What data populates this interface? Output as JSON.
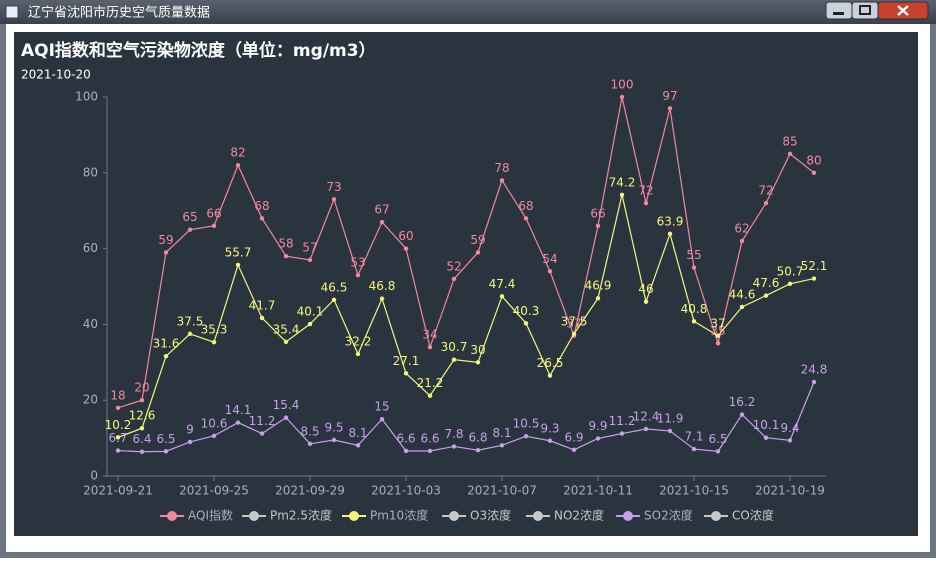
{
  "window_title": "辽宁省沈阳市历史空气质量数据",
  "chart_data": {
    "type": "line",
    "title": "AQI指数和空气污染物浓度（单位：mg/m3）",
    "subtitle": "2021-10-20",
    "categories": [
      "2021-09-21",
      null,
      null,
      null,
      "2021-09-25",
      null,
      null,
      null,
      "2021-09-29",
      null,
      null,
      null,
      "2021-10-03",
      null,
      null,
      null,
      "2021-10-07",
      null,
      null,
      null,
      "2021-10-11",
      null,
      null,
      null,
      "2021-10-15",
      null,
      null,
      null,
      "2021-10-19",
      null
    ],
    "ylim": [
      0,
      100
    ],
    "yticks": [
      0,
      20,
      40,
      60,
      80,
      100
    ],
    "grid": false,
    "legend": "bottom",
    "series": [
      {
        "name": "AQI指数",
        "color": "#f2879f",
        "values": [
          18,
          20,
          59,
          65,
          66,
          82,
          68,
          58,
          57,
          73,
          53,
          67,
          60,
          34,
          52,
          59,
          78,
          68,
          54,
          37,
          66,
          100,
          72,
          97,
          55,
          35,
          62,
          72,
          85,
          80
        ]
      },
      {
        "name": "Pm2.5浓度",
        "color": "#c8c8c8",
        "visible": false
      },
      {
        "name": "Pm10浓度",
        "color": "#f5f57e",
        "values": [
          10.2,
          12.6,
          31.6,
          37.5,
          35.3,
          55.7,
          41.7,
          35.4,
          40.1,
          46.5,
          32.2,
          46.8,
          27.1,
          21.2,
          30.7,
          30,
          47.4,
          40.3,
          26.5,
          37.5,
          46.9,
          74.2,
          46,
          63.9,
          40.8,
          37,
          44.6,
          47.6,
          50.7,
          52.1
        ]
      },
      {
        "name": "O3浓度",
        "color": "#c8c8c8",
        "visible": false
      },
      {
        "name": "NO2浓度",
        "color": "#c8c8c8",
        "visible": false
      },
      {
        "name": "SO2浓度",
        "color": "#cb9ee9",
        "values": [
          6.7,
          6.4,
          6.5,
          9,
          10.6,
          14.1,
          11.2,
          15.4,
          8.5,
          9.5,
          8.1,
          15,
          6.6,
          6.6,
          7.8,
          6.8,
          8.1,
          10.5,
          9.3,
          6.9,
          9.9,
          11.2,
          12.4,
          11.9,
          7.1,
          6.5,
          16.2,
          10.1,
          9.4,
          24.8
        ]
      },
      {
        "name": "CO浓度",
        "color": "#c8c8c8",
        "visible": false
      }
    ]
  }
}
